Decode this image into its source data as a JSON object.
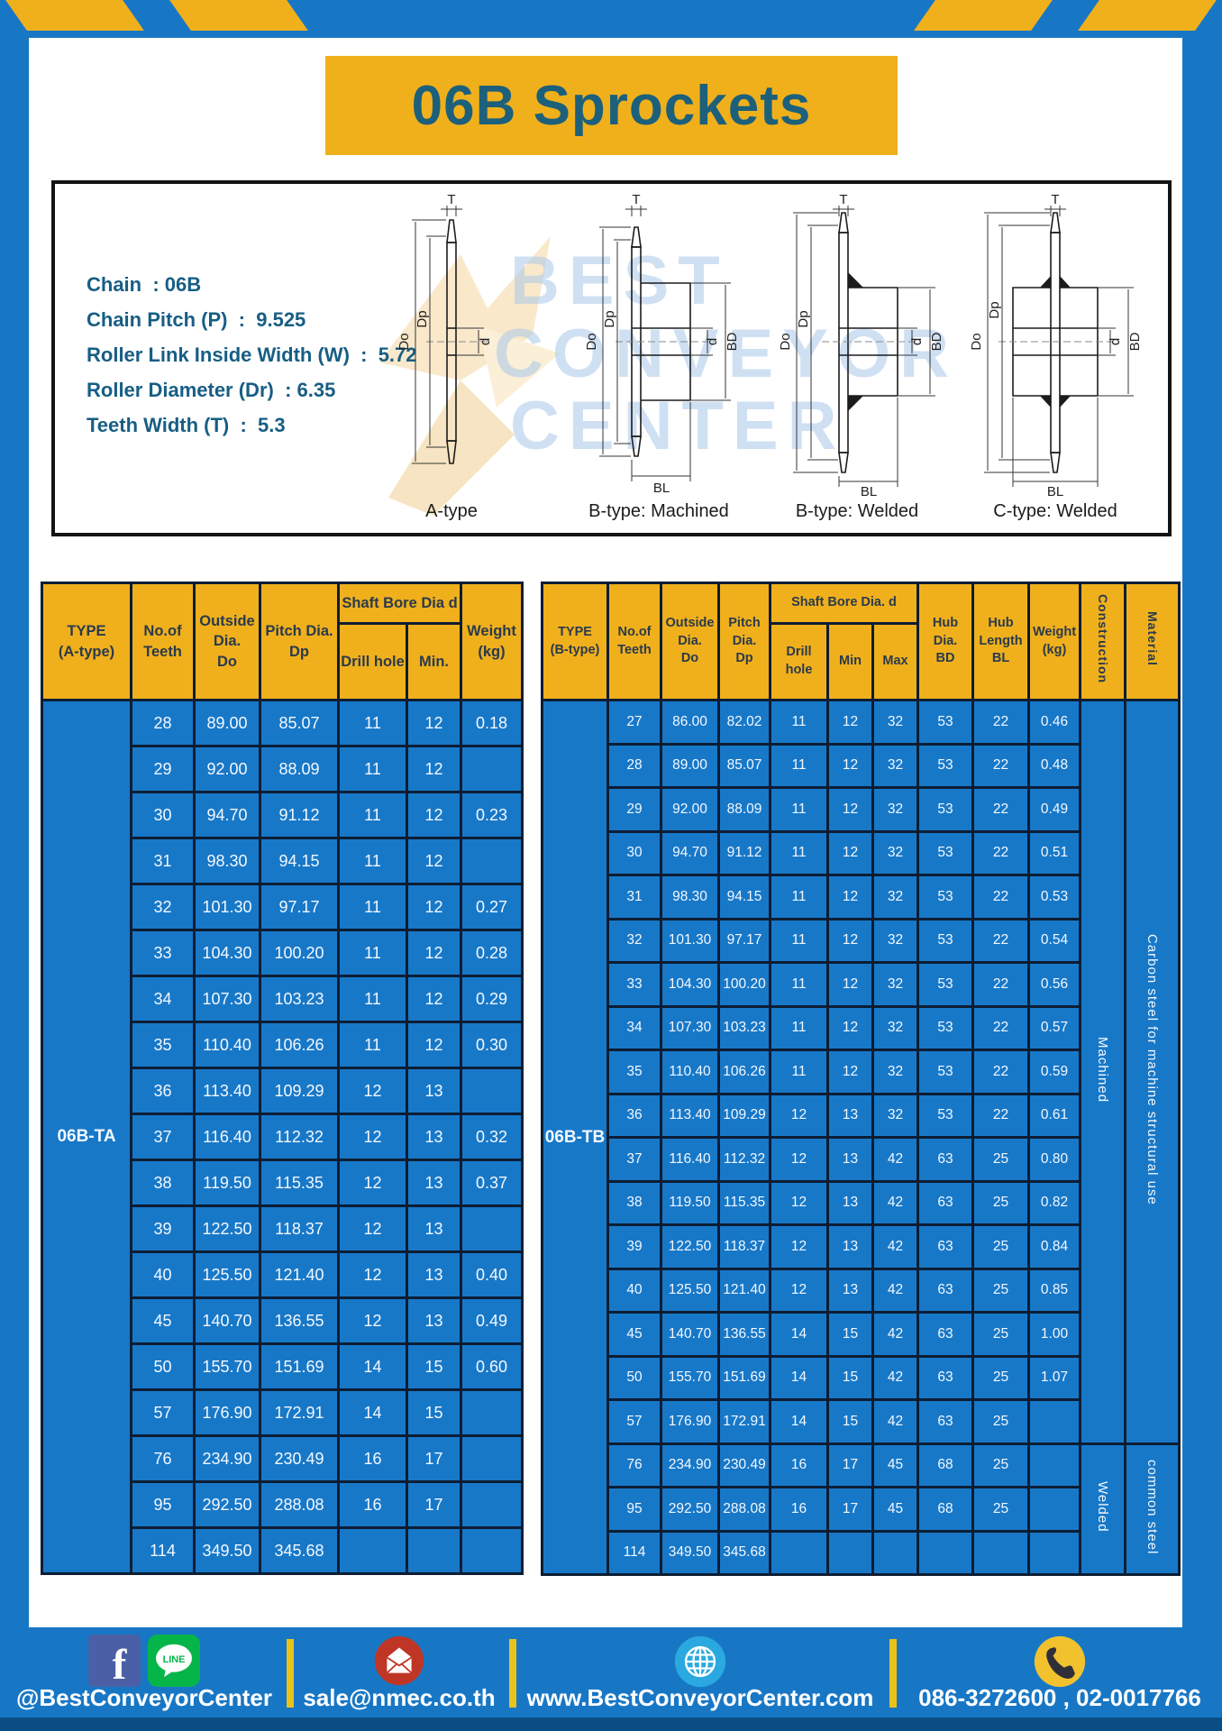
{
  "title": "06B Sprockets",
  "specs": [
    {
      "label": "Chain",
      "value": "06B"
    },
    {
      "label": "Chain Pitch (P)",
      "value": "9.525"
    },
    {
      "label": "Roller Link Inside Width (W)",
      "value": "5.72"
    },
    {
      "label": "Roller Diameter (Dr)",
      "value": "6.35"
    },
    {
      "label": "Teeth Width (T)",
      "value": "5.3"
    }
  ],
  "watermark": {
    "line1": "BEST",
    "line2": "CONVEYOR",
    "line3": "CENTER"
  },
  "diagrams": {
    "captions": [
      "A-type",
      "B-type: Machined",
      "B-type: Welded",
      "C-type: Welded"
    ],
    "dims": {
      "t": "T",
      "do": "Do",
      "dp": "Dp",
      "d": "d",
      "bd": "BD",
      "bl": "BL"
    }
  },
  "table_a": {
    "header": {
      "type": "TYPE\n(A-type)",
      "teeth": "No.of\nTeeth",
      "outside": "Outside\nDia.\nDo",
      "pitch": "Pitch Dia.\nDp",
      "shaft_bore": "Shaft Bore Dia d",
      "drill": "Drill hole",
      "min": "Min.",
      "weight": "Weight\n(kg)"
    },
    "type_label": "06B-TA",
    "rows": [
      [
        "28",
        "89.00",
        "85.07",
        "11",
        "12",
        "0.18"
      ],
      [
        "29",
        "92.00",
        "88.09",
        "11",
        "12",
        ""
      ],
      [
        "30",
        "94.70",
        "91.12",
        "11",
        "12",
        "0.23"
      ],
      [
        "31",
        "98.30",
        "94.15",
        "11",
        "12",
        ""
      ],
      [
        "32",
        "101.30",
        "97.17",
        "11",
        "12",
        "0.27"
      ],
      [
        "33",
        "104.30",
        "100.20",
        "11",
        "12",
        "0.28"
      ],
      [
        "34",
        "107.30",
        "103.23",
        "11",
        "12",
        "0.29"
      ],
      [
        "35",
        "110.40",
        "106.26",
        "11",
        "12",
        "0.30"
      ],
      [
        "36",
        "113.40",
        "109.29",
        "12",
        "13",
        ""
      ],
      [
        "37",
        "116.40",
        "112.32",
        "12",
        "13",
        "0.32"
      ],
      [
        "38",
        "119.50",
        "115.35",
        "12",
        "13",
        "0.37"
      ],
      [
        "39",
        "122.50",
        "118.37",
        "12",
        "13",
        ""
      ],
      [
        "40",
        "125.50",
        "121.40",
        "12",
        "13",
        "0.40"
      ],
      [
        "45",
        "140.70",
        "136.55",
        "12",
        "13",
        "0.49"
      ],
      [
        "50",
        "155.70",
        "151.69",
        "14",
        "15",
        "0.60"
      ],
      [
        "57",
        "176.90",
        "172.91",
        "14",
        "15",
        ""
      ],
      [
        "76",
        "234.90",
        "230.49",
        "16",
        "17",
        ""
      ],
      [
        "95",
        "292.50",
        "288.08",
        "16",
        "17",
        ""
      ],
      [
        "114",
        "349.50",
        "345.68",
        "",
        "",
        ""
      ]
    ]
  },
  "table_b": {
    "header": {
      "type": "TYPE\n(B-type)",
      "teeth": "No.of\nTeeth",
      "outside": "Outside\nDia.\nDo",
      "pitch": "Pitch\nDia.\nDp",
      "shaft_bore": "Shaft Bore Dia. d",
      "drill": "Drill hole",
      "min": "Min",
      "max": "Max",
      "hub_dia": "Hub\nDia.\nBD",
      "hub_len": "Hub\nLength\nBL",
      "weight": "Weight\n(kg)",
      "construction": "Construction",
      "material": "Material"
    },
    "type_label": "06B-TB",
    "rows": [
      [
        "27",
        "86.00",
        "82.02",
        "11",
        "12",
        "32",
        "53",
        "22",
        "0.46"
      ],
      [
        "28",
        "89.00",
        "85.07",
        "11",
        "12",
        "32",
        "53",
        "22",
        "0.48"
      ],
      [
        "29",
        "92.00",
        "88.09",
        "11",
        "12",
        "32",
        "53",
        "22",
        "0.49"
      ],
      [
        "30",
        "94.70",
        "91.12",
        "11",
        "12",
        "32",
        "53",
        "22",
        "0.51"
      ],
      [
        "31",
        "98.30",
        "94.15",
        "11",
        "12",
        "32",
        "53",
        "22",
        "0.53"
      ],
      [
        "32",
        "101.30",
        "97.17",
        "11",
        "12",
        "32",
        "53",
        "22",
        "0.54"
      ],
      [
        "33",
        "104.30",
        "100.20",
        "11",
        "12",
        "32",
        "53",
        "22",
        "0.56"
      ],
      [
        "34",
        "107.30",
        "103.23",
        "11",
        "12",
        "32",
        "53",
        "22",
        "0.57"
      ],
      [
        "35",
        "110.40",
        "106.26",
        "11",
        "12",
        "32",
        "53",
        "22",
        "0.59"
      ],
      [
        "36",
        "113.40",
        "109.29",
        "12",
        "13",
        "32",
        "53",
        "22",
        "0.61"
      ],
      [
        "37",
        "116.40",
        "112.32",
        "12",
        "13",
        "42",
        "63",
        "25",
        "0.80"
      ],
      [
        "38",
        "119.50",
        "115.35",
        "12",
        "13",
        "42",
        "63",
        "25",
        "0.82"
      ],
      [
        "39",
        "122.50",
        "118.37",
        "12",
        "13",
        "42",
        "63",
        "25",
        "0.84"
      ],
      [
        "40",
        "125.50",
        "121.40",
        "12",
        "13",
        "42",
        "63",
        "25",
        "0.85"
      ],
      [
        "45",
        "140.70",
        "136.55",
        "14",
        "15",
        "42",
        "63",
        "25",
        "1.00"
      ],
      [
        "50",
        "155.70",
        "151.69",
        "14",
        "15",
        "42",
        "63",
        "25",
        "1.07"
      ],
      [
        "57",
        "176.90",
        "172.91",
        "14",
        "15",
        "42",
        "63",
        "25",
        ""
      ],
      [
        "76",
        "234.90",
        "230.49",
        "16",
        "17",
        "45",
        "68",
        "25",
        ""
      ],
      [
        "95",
        "292.50",
        "288.08",
        "16",
        "17",
        "45",
        "68",
        "25",
        ""
      ],
      [
        "114",
        "349.50",
        "345.68",
        "",
        "",
        "",
        "",
        "",
        ""
      ]
    ],
    "construction": [
      {
        "label": "Machined",
        "span": 17
      },
      {
        "label": "Welded",
        "span": 3
      }
    ],
    "material": [
      {
        "label": "Carbon steel for machine structural use",
        "span": 17
      },
      {
        "label": "common steel",
        "span": 3
      }
    ]
  },
  "footer": {
    "line_label": "LINE",
    "sections": [
      {
        "icons": [
          "facebook-icon",
          "line-icon"
        ],
        "text": "@BestConveyorCenter"
      },
      {
        "icons": [
          "email-icon"
        ],
        "text": "sale@nmec.co.th"
      },
      {
        "icons": [
          "globe-icon"
        ],
        "text": "www.BestConveyorCenter.com"
      },
      {
        "icons": [
          "phone-icon"
        ],
        "text": "086-3272600 , 02-0017766"
      }
    ]
  },
  "colors": {
    "page_blue": "#1877c5",
    "banner_yellow": "#f0b01c",
    "title_text": "#1c607c",
    "cell_blue": "#1878c8",
    "header_yellow": "#f0b01c",
    "border_dark": "#0d1d33",
    "footer_divider": "#e9c319",
    "bottom_strip": "#0b4e86"
  }
}
